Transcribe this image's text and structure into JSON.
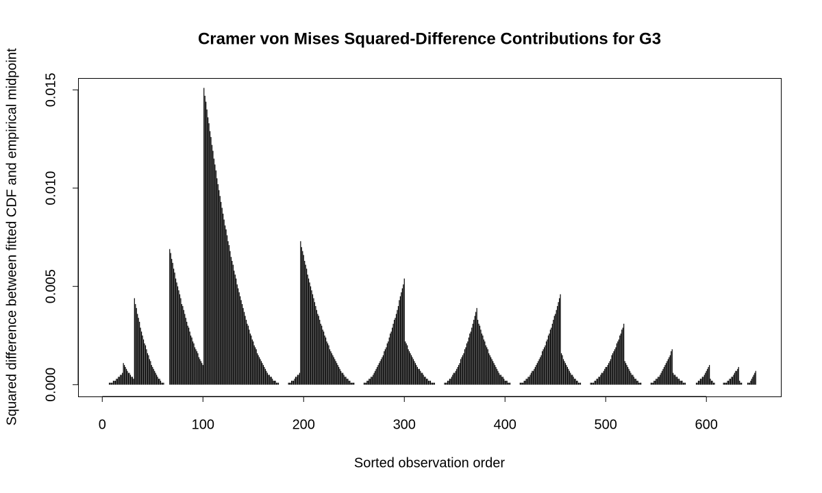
{
  "chart_data": {
    "type": "bar",
    "title": "Cramer von Mises Squared-Difference Contributions for G3",
    "xlabel": "Sorted observation order",
    "ylabel": "Squared difference between fitted CDF and empirical midpoint",
    "color": "#000000",
    "grid": false,
    "xlim": [
      -24,
      674
    ],
    "ylim": [
      -0.0006,
      0.0156
    ],
    "xticks": [
      0,
      100,
      200,
      300,
      400,
      500,
      600
    ],
    "yticks": [
      {
        "value": 0,
        "label": "0.000"
      },
      {
        "value": 0.005,
        "label": "0.005"
      },
      {
        "value": 0.01,
        "label": "0.010"
      },
      {
        "value": 0.015,
        "label": "0.015"
      }
    ],
    "x": [
      1,
      2,
      3,
      4,
      5,
      6,
      7,
      8,
      9,
      10,
      11,
      12,
      13,
      14,
      15,
      16,
      17,
      18,
      19,
      20,
      21,
      22,
      23,
      24,
      25,
      26,
      27,
      28,
      29,
      30,
      31,
      32,
      33,
      34,
      35,
      36,
      37,
      38,
      39,
      40,
      41,
      42,
      43,
      44,
      45,
      46,
      47,
      48,
      49,
      50,
      51,
      52,
      53,
      54,
      55,
      56,
      57,
      58,
      59,
      60,
      61,
      62,
      63,
      64,
      65,
      66,
      67,
      68,
      69,
      70,
      71,
      72,
      73,
      74,
      75,
      76,
      77,
      78,
      79,
      80,
      81,
      82,
      83,
      84,
      85,
      86,
      87,
      88,
      89,
      90,
      91,
      92,
      93,
      94,
      95,
      96,
      97,
      98,
      99,
      100,
      101,
      102,
      103,
      104,
      105,
      106,
      107,
      108,
      109,
      110,
      111,
      112,
      113,
      114,
      115,
      116,
      117,
      118,
      119,
      120,
      121,
      122,
      123,
      124,
      125,
      126,
      127,
      128,
      129,
      130,
      131,
      132,
      133,
      134,
      135,
      136,
      137,
      138,
      139,
      140,
      141,
      142,
      143,
      144,
      145,
      146,
      147,
      148,
      149,
      150,
      151,
      152,
      153,
      154,
      155,
      156,
      157,
      158,
      159,
      160,
      161,
      162,
      163,
      164,
      165,
      166,
      167,
      168,
      169,
      170,
      171,
      172,
      173,
      174,
      175,
      176,
      177,
      178,
      179,
      180,
      181,
      182,
      183,
      184,
      185,
      186,
      187,
      188,
      189,
      190,
      191,
      192,
      193,
      194,
      195,
      196,
      197,
      198,
      199,
      200,
      201,
      202,
      203,
      204,
      205,
      206,
      207,
      208,
      209,
      210,
      211,
      212,
      213,
      214,
      215,
      216,
      217,
      218,
      219,
      220,
      221,
      222,
      223,
      224,
      225,
      226,
      227,
      228,
      229,
      230,
      231,
      232,
      233,
      234,
      235,
      236,
      237,
      238,
      239,
      240,
      241,
      242,
      243,
      244,
      245,
      246,
      247,
      248,
      249,
      250,
      251,
      252,
      253,
      254,
      255,
      256,
      257,
      258,
      259,
      260,
      261,
      262,
      263,
      264,
      265,
      266,
      267,
      268,
      269,
      270,
      271,
      272,
      273,
      274,
      275,
      276,
      277,
      278,
      279,
      280,
      281,
      282,
      283,
      284,
      285,
      286,
      287,
      288,
      289,
      290,
      291,
      292,
      293,
      294,
      295,
      296,
      297,
      298,
      299,
      300,
      301,
      302,
      303,
      304,
      305,
      306,
      307,
      308,
      309,
      310,
      311,
      312,
      313,
      314,
      315,
      316,
      317,
      318,
      319,
      320,
      321,
      322,
      323,
      324,
      325,
      326,
      327,
      328,
      329,
      330,
      331,
      332,
      333,
      334,
      335,
      336,
      337,
      338,
      339,
      340,
      341,
      342,
      343,
      344,
      345,
      346,
      347,
      348,
      349,
      350,
      351,
      352,
      353,
      354,
      355,
      356,
      357,
      358,
      359,
      360,
      361,
      362,
      363,
      364,
      365,
      366,
      367,
      368,
      369,
      370,
      371,
      372,
      373,
      374,
      375,
      376,
      377,
      378,
      379,
      380,
      381,
      382,
      383,
      384,
      385,
      386,
      387,
      388,
      389,
      390,
      391,
      392,
      393,
      394,
      395,
      396,
      397,
      398,
      399,
      400,
      401,
      402,
      403,
      404,
      405,
      406,
      407,
      408,
      409,
      410,
      411,
      412,
      413,
      414,
      415,
      416,
      417,
      418,
      419,
      420,
      421,
      422,
      423,
      424,
      425,
      426,
      427,
      428,
      429,
      430,
      431,
      432,
      433,
      434,
      435,
      436,
      437,
      438,
      439,
      440,
      441,
      442,
      443,
      444,
      445,
      446,
      447,
      448,
      449,
      450,
      451,
      452,
      453,
      454,
      455,
      456,
      457,
      458,
      459,
      460,
      461,
      462,
      463,
      464,
      465,
      466,
      467,
      468,
      469,
      470,
      471,
      472,
      473,
      474,
      475,
      476,
      477,
      478,
      479,
      480,
      481,
      482,
      483,
      484,
      485,
      486,
      487,
      488,
      489,
      490,
      491,
      492,
      493,
      494,
      495,
      496,
      497,
      498,
      499,
      500,
      501,
      502,
      503,
      504,
      505,
      506,
      507,
      508,
      509,
      510,
      511,
      512,
      513,
      514,
      515,
      516,
      517,
      518,
      519,
      520,
      521,
      522,
      523,
      524,
      525,
      526,
      527,
      528,
      529,
      530,
      531,
      532,
      533,
      534,
      535,
      536,
      537,
      538,
      539,
      540,
      541,
      542,
      543,
      544,
      545,
      546,
      547,
      548,
      549,
      550,
      551,
      552,
      553,
      554,
      555,
      556,
      557,
      558,
      559,
      560,
      561,
      562,
      563,
      564,
      565,
      566,
      567,
      568,
      569,
      570,
      571,
      572,
      573,
      574,
      575,
      576,
      577,
      578,
      579,
      580,
      581,
      582,
      583,
      584,
      585,
      586,
      587,
      588,
      589,
      590,
      591,
      592,
      593,
      594,
      595,
      596,
      597,
      598,
      599,
      600,
      601,
      602,
      603,
      604,
      605,
      606,
      607,
      608,
      609,
      610,
      611,
      612,
      613,
      614,
      615,
      616,
      617,
      618,
      619,
      620,
      621,
      622,
      623,
      624,
      625,
      626,
      627,
      628,
      629,
      630,
      631,
      632,
      633,
      634,
      635,
      636,
      637,
      638,
      639,
      640,
      641,
      642,
      643,
      644,
      645,
      646,
      647,
      648,
      649
    ],
    "values": [
      0,
      0,
      0,
      0,
      0,
      0,
      0.0001,
      0.0001,
      0.0001,
      0.0001,
      0.0002,
      0.0002,
      0.0002,
      0.0003,
      0.0003,
      0.0004,
      0.0004,
      0.0005,
      0.0005,
      0.0006,
      0.0011,
      0.001,
      0.0009,
      0.0008,
      0.0007,
      0.0006,
      0.0006,
      0.0005,
      0.0004,
      0.0004,
      0.0003,
      0.0044,
      0.0041,
      0.0039,
      0.0036,
      0.0034,
      0.0032,
      0.0029,
      0.0027,
      0.0025,
      0.0023,
      0.0021,
      0.002,
      0.0018,
      0.0016,
      0.0015,
      0.0013,
      0.0012,
      0.001,
      0.0009,
      0.0008,
      0.0007,
      0.0006,
      0.0005,
      0.0004,
      0.0003,
      0.0003,
      0.0002,
      0.0001,
      0.0001,
      0.0001,
      0,
      0,
      0,
      0,
      0,
      0.0069,
      0.0067,
      0.0064,
      0.0062,
      0.0059,
      0.0057,
      0.0054,
      0.0052,
      0.005,
      0.0048,
      0.0046,
      0.0044,
      0.0041,
      0.004,
      0.0038,
      0.0036,
      0.0034,
      0.0032,
      0.003,
      0.0029,
      0.0027,
      0.0025,
      0.0024,
      0.0022,
      0.0021,
      0.0019,
      0.0018,
      0.0017,
      0.0016,
      0.0014,
      0.0013,
      0.0012,
      0.0011,
      0.001,
      0.0151,
      0.0147,
      0.0144,
      0.014,
      0.0136,
      0.0133,
      0.0129,
      0.0126,
      0.0122,
      0.0119,
      0.0115,
      0.0112,
      0.0109,
      0.0105,
      0.0102,
      0.0099,
      0.0096,
      0.0093,
      0.009,
      0.0087,
      0.0084,
      0.0081,
      0.0079,
      0.0076,
      0.0073,
      0.0071,
      0.0068,
      0.0065,
      0.0063,
      0.0061,
      0.0058,
      0.0056,
      0.0054,
      0.0051,
      0.0049,
      0.0047,
      0.0045,
      0.0043,
      0.0041,
      0.0039,
      0.0037,
      0.0035,
      0.0033,
      0.0031,
      0.003,
      0.0028,
      0.0026,
      0.0025,
      0.0023,
      0.0022,
      0.002,
      0.0019,
      0.0018,
      0.0016,
      0.0015,
      0.0014,
      0.0013,
      0.0012,
      0.0011,
      0.001,
      0.0009,
      0.0008,
      0.0007,
      0.0006,
      0.0005,
      0.0005,
      0.0004,
      0.0004,
      0.0003,
      0.0002,
      0.0002,
      0.0002,
      0.0001,
      0.0001,
      0.0001,
      0,
      0,
      0,
      0,
      0,
      0,
      0,
      0,
      0,
      0.0001,
      0.0001,
      0.0001,
      0.0002,
      0.0002,
      0.0002,
      0.0003,
      0.0004,
      0.0004,
      0.0005,
      0.0005,
      0.0006,
      0.0073,
      0.007,
      0.0068,
      0.0066,
      0.0063,
      0.0061,
      0.0059,
      0.0056,
      0.0054,
      0.0052,
      0.005,
      0.0048,
      0.0046,
      0.0044,
      0.0042,
      0.004,
      0.0038,
      0.0036,
      0.0035,
      0.0033,
      0.0031,
      0.003,
      0.0028,
      0.0027,
      0.0025,
      0.0024,
      0.0022,
      0.0021,
      0.002,
      0.0018,
      0.0017,
      0.0016,
      0.0015,
      0.0014,
      0.0013,
      0.0012,
      0.0011,
      0.001,
      0.0009,
      0.0008,
      0.0007,
      0.0006,
      0.0006,
      0.0005,
      0.0004,
      0.0004,
      0.0003,
      0.0003,
      0.0002,
      0.0002,
      0.0001,
      0.0001,
      0.0001,
      0.0001,
      0,
      0,
      0,
      0,
      0,
      0,
      0,
      0,
      0,
      0.0001,
      0.0001,
      0.0001,
      0.0002,
      0.0002,
      0.0003,
      0.0003,
      0.0004,
      0.0004,
      0.0005,
      0.0006,
      0.0007,
      0.0008,
      0.0009,
      0.001,
      0.0011,
      0.0012,
      0.0013,
      0.0014,
      0.0015,
      0.0017,
      0.0018,
      0.0019,
      0.0021,
      0.0022,
      0.0024,
      0.0026,
      0.0027,
      0.0029,
      0.0031,
      0.0033,
      0.0034,
      0.0036,
      0.0038,
      0.004,
      0.0043,
      0.0045,
      0.0047,
      0.0049,
      0.0051,
      0.0054,
      0.0022,
      0.0021,
      0.002,
      0.0018,
      0.0017,
      0.0016,
      0.0015,
      0.0014,
      0.0013,
      0.0012,
      0.0011,
      0.001,
      0.0009,
      0.0008,
      0.0008,
      0.0007,
      0.0006,
      0.0006,
      0.0005,
      0.0004,
      0.0004,
      0.0003,
      0.0003,
      0.0002,
      0.0002,
      0.0002,
      0.0001,
      0.0001,
      0.0001,
      0.0001,
      0,
      0,
      0,
      0,
      0,
      0,
      0,
      0,
      0,
      0.0001,
      0.0001,
      0.0001,
      0.0002,
      0.0002,
      0.0003,
      0.0003,
      0.0004,
      0.0005,
      0.0006,
      0.0006,
      0.0007,
      0.0008,
      0.0009,
      0.001,
      0.0011,
      0.0013,
      0.0014,
      0.0015,
      0.0016,
      0.0018,
      0.0019,
      0.0021,
      0.0022,
      0.0024,
      0.0026,
      0.0027,
      0.0029,
      0.0031,
      0.0033,
      0.0035,
      0.0037,
      0.0039,
      0.0033,
      0.0031,
      0.003,
      0.0028,
      0.0026,
      0.0025,
      0.0023,
      0.0022,
      0.002,
      0.0019,
      0.0018,
      0.0016,
      0.0015,
      0.0014,
      0.0013,
      0.0012,
      0.0011,
      0.001,
      0.0009,
      0.0008,
      0.0007,
      0.0006,
      0.0005,
      0.0005,
      0.0004,
      0.0004,
      0.0003,
      0.0002,
      0.0002,
      0.0002,
      0.0001,
      0.0001,
      0.0001,
      0,
      0,
      0,
      0,
      0,
      0,
      0,
      0,
      0,
      0.0001,
      0.0001,
      0.0001,
      0.0001,
      0.0002,
      0.0002,
      0.0003,
      0.0003,
      0.0004,
      0.0004,
      0.0005,
      0.0006,
      0.0007,
      0.0007,
      0.0008,
      0.0009,
      0.001,
      0.0011,
      0.0012,
      0.0013,
      0.0014,
      0.0015,
      0.0017,
      0.0018,
      0.0019,
      0.002,
      0.0022,
      0.0023,
      0.0025,
      0.0026,
      0.0028,
      0.0029,
      0.0031,
      0.0033,
      0.0035,
      0.0036,
      0.0038,
      0.004,
      0.0042,
      0.0044,
      0.0046,
      0.0016,
      0.0015,
      0.0013,
      0.0012,
      0.0011,
      0.001,
      0.0009,
      0.0008,
      0.0007,
      0.0006,
      0.0005,
      0.0005,
      0.0004,
      0.0003,
      0.0003,
      0.0002,
      0.0002,
      0.0001,
      0.0001,
      0.0001,
      0,
      0,
      0,
      0,
      0,
      0,
      0,
      0,
      0,
      0.0001,
      0.0001,
      0.0001,
      0.0001,
      0.0002,
      0.0002,
      0.0003,
      0.0003,
      0.0004,
      0.0004,
      0.0005,
      0.0006,
      0.0006,
      0.0007,
      0.0008,
      0.0009,
      0.0009,
      0.001,
      0.0011,
      0.0012,
      0.0013,
      0.0015,
      0.0016,
      0.0017,
      0.0018,
      0.0019,
      0.0021,
      0.0022,
      0.0023,
      0.0025,
      0.0026,
      0.0028,
      0.0029,
      0.0031,
      0.0012,
      0.0011,
      0.001,
      0.0009,
      0.0008,
      0.0007,
      0.0006,
      0.0005,
      0.0005,
      0.0004,
      0.0003,
      0.0003,
      0.0002,
      0.0002,
      0.0001,
      0.0001,
      0.0001,
      0,
      0,
      0,
      0,
      0,
      0,
      0,
      0,
      0,
      0.0001,
      0.0001,
      0.0001,
      0.0002,
      0.0002,
      0.0003,
      0.0003,
      0.0004,
      0.0004,
      0.0005,
      0.0006,
      0.0007,
      0.0008,
      0.0009,
      0.001,
      0.0011,
      0.0012,
      0.0013,
      0.0014,
      0.0015,
      0.0017,
      0.0018,
      0.0006,
      0.0005,
      0.0005,
      0.0004,
      0.0004,
      0.0003,
      0.0003,
      0.0002,
      0.0002,
      0.0002,
      0.0001,
      0.0001,
      0.0001,
      0,
      0,
      0,
      0,
      0,
      0,
      0,
      0,
      0,
      0,
      0.0001,
      0.0001,
      0.0002,
      0.0002,
      0.0003,
      0.0003,
      0.0004,
      0.0004,
      0.0005,
      0.0006,
      0.0007,
      0.0008,
      0.0009,
      0.001,
      0.0003,
      0.0002,
      0.0002,
      0.0001,
      0.0001,
      0,
      0,
      0,
      0,
      0,
      0,
      0,
      0,
      0.0001,
      0.0001,
      0.0001,
      0.0001,
      0.0002,
      0.0002,
      0.0003,
      0.0003,
      0.0004,
      0.0004,
      0.0005,
      0.0006,
      0.0007,
      0.0007,
      0.0008,
      0.0009,
      0.0002,
      0.0001,
      0.0001,
      0,
      0,
      0,
      0,
      0,
      0.0001,
      0.0001,
      0.0001,
      0.0002,
      0.0003,
      0.0004,
      0.0005,
      0.0006,
      0.0007
    ]
  }
}
